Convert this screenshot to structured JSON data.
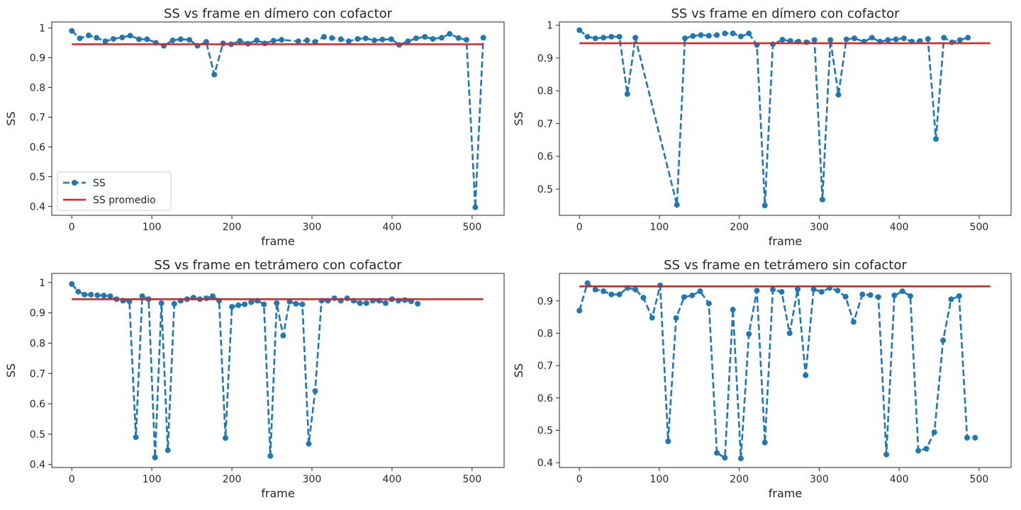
{
  "chart_data": [
    {
      "type": "line",
      "title": "SS vs frame en dímero con cofactor",
      "xlabel": "frame",
      "ylabel": "SS",
      "xlim": [
        -25,
        540
      ],
      "ylim": [
        0.37,
        1.02
      ],
      "xticks": [
        0,
        100,
        200,
        300,
        400,
        500
      ],
      "yticks": [
        0.4,
        0.5,
        0.6,
        0.7,
        0.8,
        0.9,
        1.0
      ],
      "legend": {
        "placement": "lower-left",
        "entries": [
          "SS",
          "SS promedio"
        ]
      },
      "series": [
        {
          "name": "SS",
          "style": "dashed-with-markers",
          "color": "#1f77b4",
          "x": [
            0,
            10,
            21,
            31,
            42,
            52,
            63,
            73,
            84,
            94,
            105,
            115,
            126,
            136,
            147,
            157,
            168,
            178,
            189,
            199,
            210,
            220,
            231,
            241,
            252,
            262,
            283,
            294,
            304,
            315,
            325,
            336,
            346,
            357,
            367,
            378,
            388,
            399,
            409,
            420,
            430,
            441,
            451,
            462,
            472,
            483,
            493,
            504,
            514
          ],
          "y": [
            0.99,
            0.965,
            0.975,
            0.967,
            0.955,
            0.963,
            0.968,
            0.974,
            0.962,
            0.962,
            0.95,
            0.94,
            0.958,
            0.962,
            0.96,
            0.94,
            0.953,
            0.843,
            0.948,
            0.945,
            0.956,
            0.947,
            0.958,
            0.948,
            0.957,
            0.96,
            0.955,
            0.958,
            0.953,
            0.97,
            0.966,
            0.962,
            0.955,
            0.963,
            0.965,
            0.958,
            0.961,
            0.962,
            0.943,
            0.955,
            0.965,
            0.97,
            0.963,
            0.967,
            0.98,
            0.966,
            0.96,
            0.397,
            0.967
          ]
        },
        {
          "name": "SS promedio",
          "style": "solid",
          "color": "#d62728",
          "x": [
            0,
            514
          ],
          "y": [
            0.945,
            0.945
          ]
        }
      ]
    },
    {
      "type": "line",
      "title": "SS vs frame en dímero con cofactor",
      "xlabel": "frame",
      "ylabel": "SS",
      "xlim": [
        -25,
        540
      ],
      "ylim": [
        0.42,
        1.01
      ],
      "xticks": [
        0,
        100,
        200,
        300,
        400,
        500
      ],
      "yticks": [
        0.5,
        0.6,
        0.7,
        0.8,
        0.9,
        1.0
      ],
      "series": [
        {
          "name": "SS",
          "style": "dashed-with-markers",
          "color": "#1f77b4",
          "x": [
            0,
            10,
            20,
            30,
            40,
            50,
            60,
            70,
            122,
            132,
            142,
            152,
            162,
            172,
            182,
            192,
            202,
            212,
            222,
            232,
            242,
            254,
            264,
            274,
            284,
            294,
            304,
            314,
            324,
            334,
            344,
            356,
            366,
            376,
            386,
            396,
            406,
            416,
            426,
            436,
            446,
            456,
            466,
            476,
            486
          ],
          "y": [
            0.985,
            0.965,
            0.96,
            0.962,
            0.965,
            0.965,
            0.79,
            0.962,
            0.452,
            0.96,
            0.967,
            0.97,
            0.968,
            0.97,
            0.975,
            0.975,
            0.966,
            0.975,
            0.94,
            0.45,
            0.942,
            0.956,
            0.952,
            0.95,
            0.948,
            0.955,
            0.468,
            0.955,
            0.788,
            0.957,
            0.96,
            0.95,
            0.962,
            0.95,
            0.955,
            0.957,
            0.96,
            0.95,
            0.952,
            0.958,
            0.653,
            0.962,
            0.948,
            0.955,
            0.962
          ]
        },
        {
          "name": "SS promedio",
          "style": "solid",
          "color": "#d62728",
          "x": [
            0,
            514
          ],
          "y": [
            0.945,
            0.945
          ]
        }
      ]
    },
    {
      "type": "line",
      "title": "SS vs frame en tetrámero con cofactor",
      "xlabel": "frame",
      "ylabel": "SS",
      "xlim": [
        -25,
        540
      ],
      "ylim": [
        0.39,
        1.03
      ],
      "xticks": [
        0,
        100,
        200,
        300,
        400,
        500
      ],
      "yticks": [
        0.4,
        0.5,
        0.6,
        0.7,
        0.8,
        0.9,
        1.0
      ],
      "series": [
        {
          "name": "SS",
          "style": "dashed-with-markers",
          "color": "#1f77b4",
          "x": [
            0,
            8,
            16,
            24,
            32,
            40,
            48,
            56,
            64,
            72,
            80,
            88,
            96,
            104,
            112,
            120,
            128,
            136,
            144,
            152,
            160,
            168,
            176,
            184,
            192,
            200,
            208,
            216,
            224,
            232,
            240,
            248,
            256,
            264,
            272,
            280,
            288,
            296,
            304,
            312,
            320,
            328,
            336,
            344,
            352,
            360,
            368,
            376,
            384,
            392,
            400,
            408,
            416,
            424,
            432
          ],
          "y": [
            0.995,
            0.97,
            0.96,
            0.96,
            0.958,
            0.957,
            0.955,
            0.945,
            0.94,
            0.938,
            0.49,
            0.955,
            0.945,
            0.423,
            0.932,
            0.447,
            0.93,
            0.94,
            0.945,
            0.95,
            0.945,
            0.948,
            0.955,
            0.94,
            0.487,
            0.92,
            0.925,
            0.928,
            0.935,
            0.94,
            0.928,
            0.428,
            0.932,
            0.825,
            0.937,
            0.93,
            0.928,
            0.468,
            0.642,
            0.94,
            0.94,
            0.948,
            0.94,
            0.948,
            0.94,
            0.932,
            0.932,
            0.94,
            0.94,
            0.932,
            0.945,
            0.94,
            0.942,
            0.938,
            0.93
          ]
        },
        {
          "name": "SS promedio",
          "style": "solid",
          "color": "#d62728",
          "x": [
            0,
            514
          ],
          "y": [
            0.945,
            0.945
          ]
        }
      ]
    },
    {
      "type": "line",
      "title": "SS vs frame en tetrámero sin cofactor",
      "xlabel": "frame",
      "ylabel": "SS",
      "xlim": [
        -25,
        540
      ],
      "ylim": [
        0.385,
        0.985
      ],
      "xticks": [
        0,
        100,
        200,
        300,
        400,
        500
      ],
      "yticks": [
        0.4,
        0.5,
        0.6,
        0.7,
        0.8,
        0.9
      ],
      "series": [
        {
          "name": "SS",
          "style": "dashed-with-markers",
          "color": "#1f77b4",
          "x": [
            0,
            10,
            20,
            30,
            40,
            50,
            60,
            70,
            80,
            91,
            101,
            111,
            121,
            131,
            141,
            151,
            162,
            172,
            182,
            192,
            202,
            212,
            222,
            232,
            242,
            253,
            263,
            273,
            283,
            293,
            303,
            313,
            323,
            333,
            343,
            354,
            364,
            374,
            384,
            394,
            404,
            414,
            424,
            434,
            444,
            455,
            465,
            475,
            485,
            495
          ],
          "y": [
            0.87,
            0.955,
            0.935,
            0.93,
            0.92,
            0.92,
            0.94,
            0.935,
            0.91,
            0.848,
            0.948,
            0.466,
            0.847,
            0.912,
            0.917,
            0.93,
            0.892,
            0.43,
            0.415,
            0.873,
            0.413,
            0.798,
            0.932,
            0.462,
            0.935,
            0.928,
            0.8,
            0.936,
            0.67,
            0.936,
            0.928,
            0.94,
            0.932,
            0.913,
            0.835,
            0.92,
            0.918,
            0.912,
            0.425,
            0.917,
            0.93,
            0.915,
            0.437,
            0.443,
            0.494,
            0.778,
            0.905,
            0.915,
            0.477,
            0.477
          ]
        },
        {
          "name": "SS promedio",
          "style": "solid",
          "color": "#d62728",
          "x": [
            0,
            514
          ],
          "y": [
            0.945,
            0.945
          ]
        }
      ]
    }
  ]
}
